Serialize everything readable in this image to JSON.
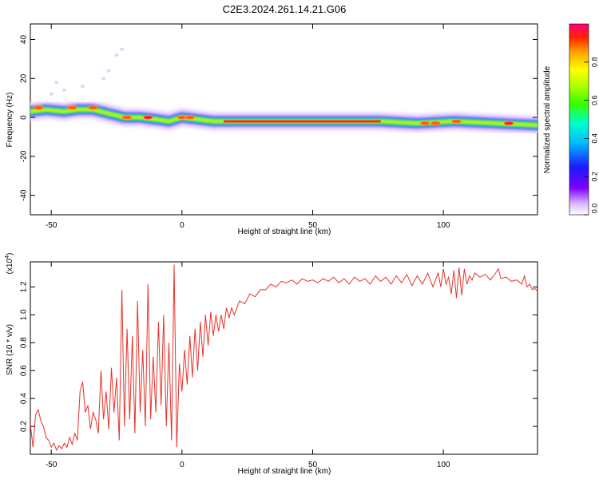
{
  "title": "C2E3.2024.261.14.21.G06",
  "chart_data": [
    {
      "type": "heatmap",
      "xlabel": "Height of straight line (km)",
      "ylabel": "Frequency (Hz)",
      "xlim": [
        -58,
        136
      ],
      "ylim": [
        -50,
        48
      ],
      "xticks": [
        "-50",
        "0",
        "50",
        "100"
      ],
      "yticks": [
        "40",
        "20",
        "0",
        "-20",
        "-40"
      ],
      "colorbar": {
        "label": "Normalized spectral amplitude",
        "range": [
          0.0,
          1.0
        ],
        "ticks": [
          "0.0",
          "0.2",
          "0.4",
          "0.6",
          "0.8"
        ]
      },
      "ridge": [
        {
          "x": -58,
          "f": 3
        },
        {
          "x": -52,
          "f": 4
        },
        {
          "x": -45,
          "f": 3
        },
        {
          "x": -40,
          "f": 4
        },
        {
          "x": -34,
          "f": 4
        },
        {
          "x": -28,
          "f": 2
        },
        {
          "x": -22,
          "f": 0
        },
        {
          "x": -16,
          "f": 0
        },
        {
          "x": -10,
          "f": -1
        },
        {
          "x": -5,
          "f": -2
        },
        {
          "x": 0,
          "f": 0
        },
        {
          "x": 6,
          "f": -1
        },
        {
          "x": 12,
          "f": -2
        },
        {
          "x": 20,
          "f": -2
        },
        {
          "x": 40,
          "f": -2
        },
        {
          "x": 60,
          "f": -2
        },
        {
          "x": 76,
          "f": -2
        },
        {
          "x": 90,
          "f": -3
        },
        {
          "x": 104,
          "f": -2
        },
        {
          "x": 120,
          "f": -3
        },
        {
          "x": 136,
          "f": -4
        }
      ],
      "hotspots": [
        {
          "x": -55,
          "f": 5,
          "a": 0.9
        },
        {
          "x": -42,
          "f": 5,
          "a": 0.9
        },
        {
          "x": -34,
          "f": 5,
          "a": 0.9
        },
        {
          "x": -21,
          "f": 0,
          "a": 0.85
        },
        {
          "x": -13,
          "f": 0,
          "a": 0.95
        },
        {
          "x": 0,
          "f": 0,
          "a": 0.9
        },
        {
          "x": 3,
          "f": 0,
          "a": 0.9
        },
        {
          "x": 93,
          "f": -3,
          "a": 0.9
        },
        {
          "x": 97,
          "f": -3,
          "a": 0.9
        },
        {
          "x": 105,
          "f": -2,
          "a": 0.85
        },
        {
          "x": 125,
          "f": -3,
          "a": 0.95
        }
      ]
    },
    {
      "type": "line",
      "xlabel": "Height of straight line (km)",
      "ylabel": "SNR (10 * v/v)",
      "scale_label": "(x10",
      "scale_exp": "4",
      "xlim": [
        -58,
        136
      ],
      "ylim": [
        0.0,
        1.38
      ],
      "xticks": [
        "-50",
        "0",
        "50",
        "100"
      ],
      "yticks": [
        "0.2",
        "0.4",
        "0.6",
        "0.8",
        "1.0",
        "1.2"
      ],
      "series": [
        {
          "name": "SNR",
          "color": "#e8322b",
          "points": [
            [
              -58,
              0.22
            ],
            [
              -57,
              0.05
            ],
            [
              -56,
              0.28
            ],
            [
              -55,
              0.32
            ],
            [
              -54,
              0.24
            ],
            [
              -53,
              0.2
            ],
            [
              -52,
              0.12
            ],
            [
              -51,
              0.1
            ],
            [
              -50,
              0.05
            ],
            [
              -49,
              0.08
            ],
            [
              -48,
              0.03
            ],
            [
              -47,
              0.06
            ],
            [
              -46,
              0.04
            ],
            [
              -45,
              0.08
            ],
            [
              -44,
              0.05
            ],
            [
              -43,
              0.12
            ],
            [
              -42,
              0.07
            ],
            [
              -41,
              0.15
            ],
            [
              -40,
              0.1
            ],
            [
              -39,
              0.45
            ],
            [
              -38,
              0.52
            ],
            [
              -37,
              0.3
            ],
            [
              -36,
              0.35
            ],
            [
              -35,
              0.18
            ],
            [
              -34,
              0.3
            ],
            [
              -33,
              0.25
            ],
            [
              -32,
              0.15
            ],
            [
              -31,
              0.6
            ],
            [
              -30,
              0.25
            ],
            [
              -29,
              0.45
            ],
            [
              -28,
              0.18
            ],
            [
              -27,
              0.62
            ],
            [
              -26,
              0.3
            ],
            [
              -25,
              0.55
            ],
            [
              -24,
              0.1
            ],
            [
              -23,
              1.18
            ],
            [
              -22,
              0.2
            ],
            [
              -21,
              0.9
            ],
            [
              -20,
              0.25
            ],
            [
              -19,
              0.85
            ],
            [
              -18,
              0.15
            ],
            [
              -17,
              1.1
            ],
            [
              -16,
              0.3
            ],
            [
              -15,
              0.75
            ],
            [
              -14,
              0.2
            ],
            [
              -13,
              1.22
            ],
            [
              -12,
              0.25
            ],
            [
              -11,
              0.7
            ],
            [
              -10,
              0.3
            ],
            [
              -9,
              0.95
            ],
            [
              -8,
              0.35
            ],
            [
              -7,
              1.0
            ],
            [
              -6,
              0.2
            ],
            [
              -5,
              0.8
            ],
            [
              -4,
              0.1
            ],
            [
              -3,
              1.36
            ],
            [
              -2,
              0.05
            ],
            [
              -1,
              0.65
            ],
            [
              0,
              0.45
            ],
            [
              1,
              0.75
            ],
            [
              2,
              0.5
            ],
            [
              3,
              0.85
            ],
            [
              4,
              0.55
            ],
            [
              5,
              0.9
            ],
            [
              6,
              0.6
            ],
            [
              7,
              0.95
            ],
            [
              8,
              0.7
            ],
            [
              9,
              1.0
            ],
            [
              10,
              0.78
            ],
            [
              11,
              1.02
            ],
            [
              12,
              0.85
            ],
            [
              13,
              1.0
            ],
            [
              14,
              0.88
            ],
            [
              15,
              1.0
            ],
            [
              16,
              0.9
            ],
            [
              17,
              1.05
            ],
            [
              18,
              0.98
            ],
            [
              19,
              1.05
            ],
            [
              20,
              1.0
            ],
            [
              22,
              1.1
            ],
            [
              24,
              1.08
            ],
            [
              26,
              1.15
            ],
            [
              28,
              1.13
            ],
            [
              30,
              1.18
            ],
            [
              32,
              1.18
            ],
            [
              34,
              1.22
            ],
            [
              36,
              1.2
            ],
            [
              38,
              1.24
            ],
            [
              40,
              1.23
            ],
            [
              42,
              1.25
            ],
            [
              44,
              1.22
            ],
            [
              46,
              1.26
            ],
            [
              48,
              1.24
            ],
            [
              50,
              1.25
            ],
            [
              52,
              1.23
            ],
            [
              54,
              1.26
            ],
            [
              56,
              1.24
            ],
            [
              58,
              1.27
            ],
            [
              60,
              1.23
            ],
            [
              62,
              1.26
            ],
            [
              64,
              1.22
            ],
            [
              66,
              1.27
            ],
            [
              68,
              1.24
            ],
            [
              70,
              1.26
            ],
            [
              72,
              1.22
            ],
            [
              74,
              1.28
            ],
            [
              76,
              1.24
            ],
            [
              78,
              1.27
            ],
            [
              80,
              1.22
            ],
            [
              82,
              1.28
            ],
            [
              84,
              1.23
            ],
            [
              86,
              1.29
            ],
            [
              88,
              1.21
            ],
            [
              90,
              1.28
            ],
            [
              92,
              1.22
            ],
            [
              94,
              1.3
            ],
            [
              96,
              1.2
            ],
            [
              98,
              1.3
            ],
            [
              99,
              1.2
            ],
            [
              100,
              1.33
            ],
            [
              101,
              1.22
            ],
            [
              102,
              1.27
            ],
            [
              103,
              1.15
            ],
            [
              104,
              1.32
            ],
            [
              105,
              1.12
            ],
            [
              106,
              1.34
            ],
            [
              107,
              1.14
            ],
            [
              108,
              1.33
            ],
            [
              109,
              1.22
            ],
            [
              110,
              1.28
            ],
            [
              111,
              1.25
            ],
            [
              112,
              1.3
            ],
            [
              114,
              1.27
            ],
            [
              116,
              1.29
            ],
            [
              118,
              1.25
            ],
            [
              120,
              1.3
            ],
            [
              121,
              1.33
            ],
            [
              122,
              1.26
            ],
            [
              124,
              1.27
            ],
            [
              126,
              1.24
            ],
            [
              128,
              1.25
            ],
            [
              130,
              1.22
            ],
            [
              131,
              1.28
            ],
            [
              132,
              1.2
            ],
            [
              133,
              1.22
            ],
            [
              134,
              1.18
            ],
            [
              135,
              1.19
            ],
            [
              136,
              1.17
            ]
          ]
        }
      ]
    }
  ]
}
